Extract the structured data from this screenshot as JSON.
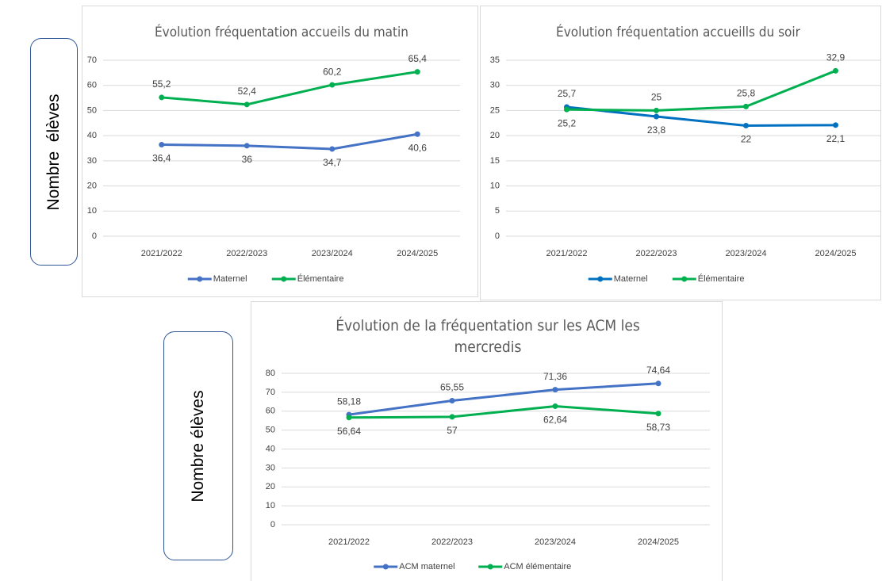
{
  "chart_data": [
    {
      "type": "line",
      "title": "Évolution fréquentation accueils du matin",
      "ylabel": "Nombre  élèves",
      "categories": [
        "2021/2022",
        "2022/2023",
        "2023/2024",
        "2024/2025"
      ],
      "series": [
        {
          "name": "Maternel",
          "color": "#4472c4",
          "values": [
            36.4,
            36,
            34.7,
            40.6
          ],
          "value_labels": [
            "36,4",
            "36",
            "34,7",
            "40,6"
          ]
        },
        {
          "name": "Élémentaire",
          "color": "#00b050",
          "values": [
            55.2,
            52.4,
            60.2,
            65.4
          ],
          "value_labels": [
            "55,2",
            "52,4",
            "60,2",
            "65,4"
          ]
        }
      ],
      "ylim": [
        0,
        70
      ],
      "yticks": [
        0,
        10,
        20,
        30,
        40,
        50,
        60,
        70
      ],
      "grid": true,
      "legend": "bottom"
    },
    {
      "type": "line",
      "title": "Évolution fréquentation accueills du soir",
      "categories": [
        "2021/2022",
        "2022/2023",
        "2023/2024",
        "2024/2025"
      ],
      "series": [
        {
          "name": "Maternel",
          "color": "#0070c0",
          "values": [
            25.7,
            23.8,
            22,
            22.1
          ],
          "value_labels": [
            "25,7",
            "23,8",
            "22",
            "22,1"
          ]
        },
        {
          "name": "Élémentaire",
          "color": "#00b050",
          "values": [
            25.2,
            25,
            25.8,
            32.9
          ],
          "value_labels": [
            "25,2",
            "25",
            "25,8",
            "32,9"
          ]
        }
      ],
      "ylim": [
        0,
        35
      ],
      "yticks": [
        0,
        5,
        10,
        15,
        20,
        25,
        30,
        35
      ],
      "grid": true,
      "legend": "bottom"
    },
    {
      "type": "line",
      "title": "Évolution de la fréquentation sur les ACM les mercredis",
      "ylabel": "Nombre élèves",
      "categories": [
        "2021/2022",
        "2022/2023",
        "2023/2024",
        "2024/2025"
      ],
      "series": [
        {
          "name": "ACM maternel",
          "color": "#4472c4",
          "values": [
            58.18,
            65.55,
            71.36,
            74.64
          ],
          "value_labels": [
            "58,18",
            "65,55",
            "71,36",
            "74,64"
          ]
        },
        {
          "name": "ACM élémentaire",
          "color": "#00b050",
          "values": [
            56.64,
            57,
            62.64,
            58.73
          ],
          "value_labels": [
            "56,64",
            "57",
            "62,64",
            "58,73"
          ]
        }
      ],
      "ylim": [
        0,
        80
      ],
      "yticks": [
        0,
        10,
        20,
        30,
        40,
        50,
        60,
        70,
        80
      ],
      "grid": true,
      "legend": "bottom"
    }
  ]
}
